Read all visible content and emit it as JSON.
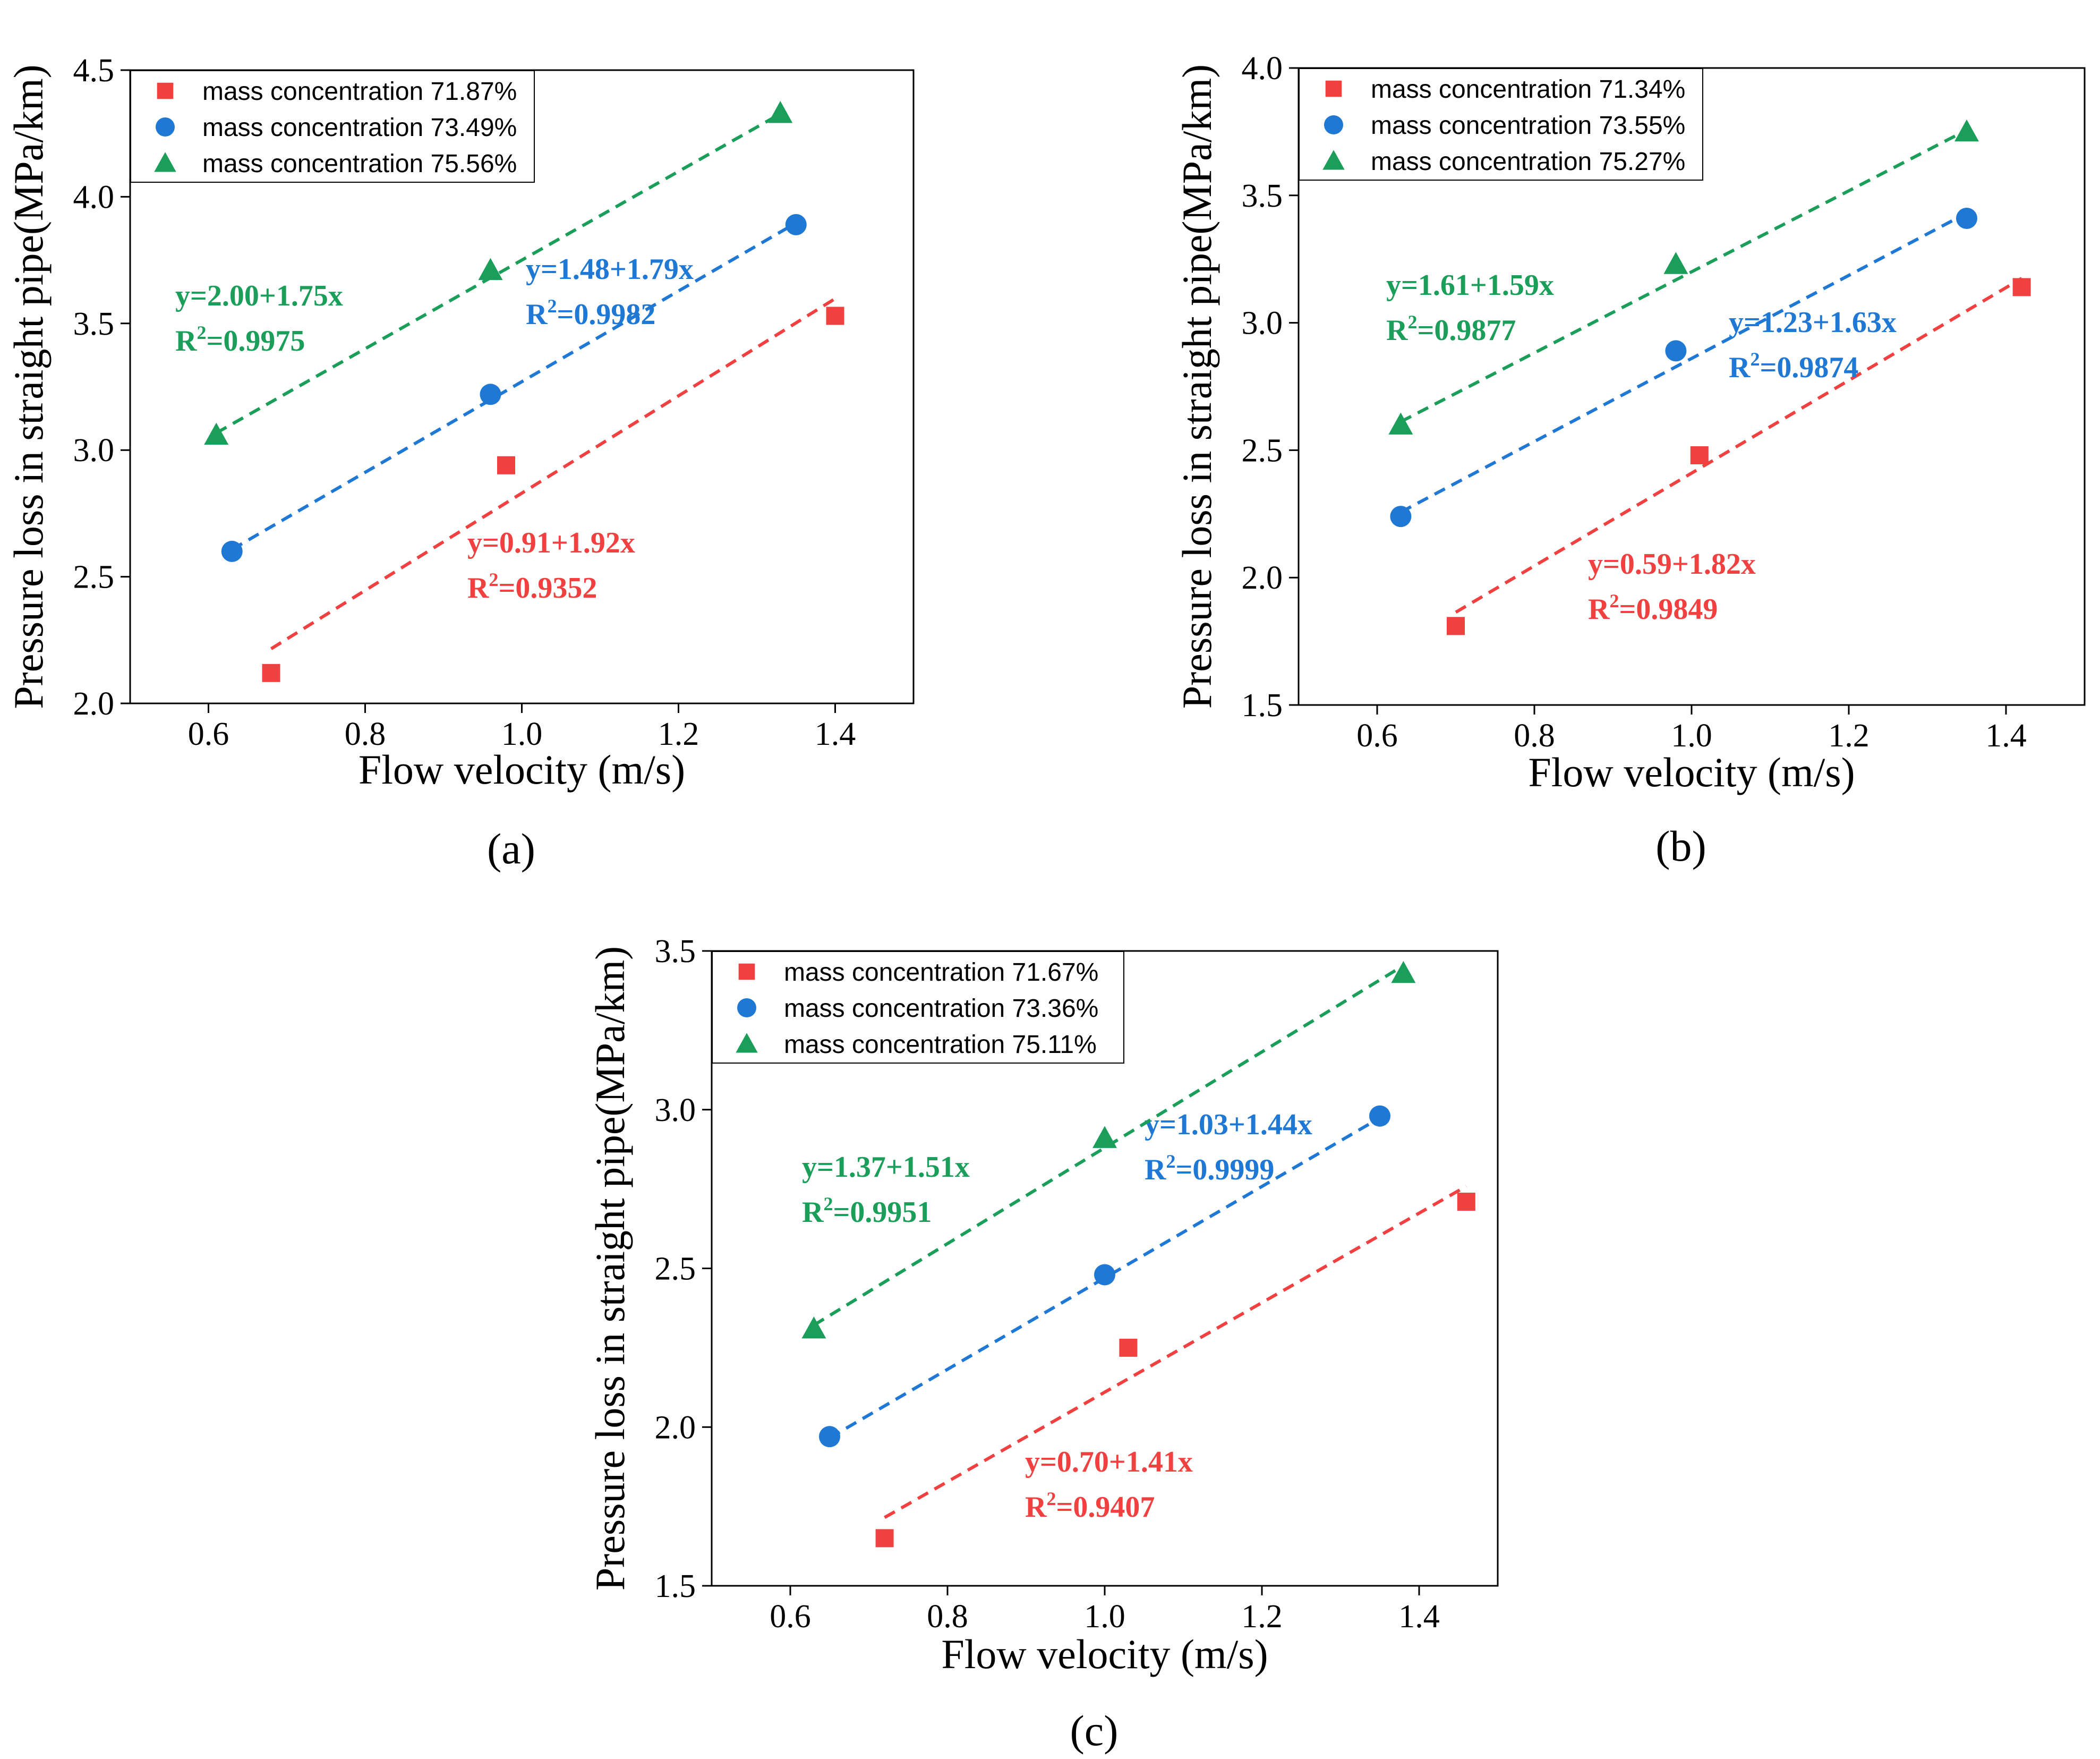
{
  "chart_data": [
    {
      "type": "scatter",
      "panel_label": "(a)",
      "xlabel": "Flow velocity (m/s)",
      "ylabel": "Pressure loss in straight pipe(MPa/km)",
      "xlim": [
        0.5,
        1.5
      ],
      "ylim": [
        2.0,
        4.5
      ],
      "xticks": [
        "0.6",
        "0.8",
        "1.0",
        "1.2",
        "1.4"
      ],
      "yticks": [
        "2.0",
        "2.5",
        "3.0",
        "3.5",
        "4.0",
        "4.5"
      ],
      "grid": false,
      "legend_position": "top-left",
      "series": [
        {
          "name": "mass concentration 71.87%",
          "marker": "square",
          "color": "#f04040",
          "x": [
            0.68,
            0.98,
            1.4
          ],
          "y": [
            2.12,
            2.94,
            3.53
          ],
          "fit_x": [
            0.68,
            1.4
          ],
          "equation": "y=0.91+1.92x",
          "r_label": "R",
          "r_sup": "2",
          "r_value": "=0.9352"
        },
        {
          "name": "mass concentration 73.49%",
          "marker": "circle",
          "color": "#1f78d4",
          "x": [
            0.63,
            0.96,
            1.35
          ],
          "y": [
            2.6,
            3.22,
            3.89
          ],
          "fit_x": [
            0.63,
            1.35
          ],
          "equation": "y=1.48+1.79x",
          "r_label": "R",
          "r_sup": "2",
          "r_value": "=0.9982"
        },
        {
          "name": "mass concentration 75.56%",
          "marker": "triangle",
          "color": "#1a9e5a",
          "x": [
            0.61,
            0.96,
            1.33
          ],
          "y": [
            3.06,
            3.71,
            4.33
          ],
          "fit_x": [
            0.61,
            1.33
          ],
          "equation": "y=2.00+1.75x",
          "r_label": "R",
          "r_sup": "2",
          "r_value": "=0.9975"
        }
      ]
    },
    {
      "type": "scatter",
      "panel_label": "(b)",
      "xlabel": "Flow velocity (m/s)",
      "ylabel": "Pressure loss in straight pipe(MPa/km)",
      "xlim": [
        0.5,
        1.5
      ],
      "ylim": [
        1.5,
        4.0
      ],
      "xticks": [
        "0.6",
        "0.8",
        "1.0",
        "1.2",
        "1.4"
      ],
      "yticks": [
        "1.5",
        "2.0",
        "2.5",
        "3.0",
        "3.5",
        "4.0"
      ],
      "grid": false,
      "legend_position": "top-left",
      "series": [
        {
          "name": "mass concentration 71.34%",
          "marker": "square",
          "color": "#f04040",
          "x": [
            0.7,
            1.01,
            1.42
          ],
          "y": [
            1.81,
            2.48,
            3.14
          ],
          "fit_x": [
            0.7,
            1.42
          ],
          "equation": "y=0.59+1.82x",
          "r_label": "R",
          "r_sup": "2",
          "r_value": "=0.9849"
        },
        {
          "name": "mass concentration 73.55%",
          "marker": "circle",
          "color": "#1f78d4",
          "x": [
            0.63,
            0.98,
            1.35
          ],
          "y": [
            2.24,
            2.89,
            3.41
          ],
          "fit_x": [
            0.63,
            1.35
          ],
          "equation": "y=1.23+1.63x",
          "r_label": "R",
          "r_sup": "2",
          "r_value": "=0.9874"
        },
        {
          "name": "mass concentration 75.27%",
          "marker": "triangle",
          "color": "#1a9e5a",
          "x": [
            0.63,
            0.98,
            1.35
          ],
          "y": [
            2.6,
            3.23,
            3.75
          ],
          "fit_x": [
            0.63,
            1.35
          ],
          "equation": "y=1.61+1.59x",
          "r_label": "R",
          "r_sup": "2",
          "r_value": "=0.9877"
        }
      ]
    },
    {
      "type": "scatter",
      "panel_label": "(c)",
      "xlabel": "Flow velocity (m/s)",
      "ylabel": "Pressure loss in straight pipe(MPa/km)",
      "xlim": [
        0.5,
        1.5
      ],
      "ylim": [
        1.5,
        3.5
      ],
      "xticks": [
        "0.6",
        "0.8",
        "1.0",
        "1.2",
        "1.4"
      ],
      "yticks": [
        "1.5",
        "2.0",
        "2.5",
        "3.0",
        "3.5"
      ],
      "grid": false,
      "legend_position": "top-left",
      "series": [
        {
          "name": "mass concentration 71.67%",
          "marker": "square",
          "color": "#f04040",
          "x": [
            0.72,
            1.03,
            1.46
          ],
          "y": [
            1.65,
            2.25,
            2.71
          ],
          "fit_x": [
            0.72,
            1.46
          ],
          "equation": "y=0.70+1.41x",
          "r_label": "R",
          "r_sup": "2",
          "r_value": "=0.9407"
        },
        {
          "name": "mass concentration 73.36%",
          "marker": "circle",
          "color": "#1f78d4",
          "x": [
            0.65,
            1.0,
            1.35
          ],
          "y": [
            1.97,
            2.48,
            2.98
          ],
          "fit_x": [
            0.65,
            1.35
          ],
          "equation": "y=1.03+1.44x",
          "r_label": "R",
          "r_sup": "2",
          "r_value": "=0.9999"
        },
        {
          "name": "mass concentration 75.11%",
          "marker": "triangle",
          "color": "#1a9e5a",
          "x": [
            0.63,
            1.0,
            1.38
          ],
          "y": [
            2.31,
            2.91,
            3.43
          ],
          "fit_x": [
            0.63,
            1.38
          ],
          "equation": "y=1.37+1.51x",
          "r_label": "R",
          "r_sup": "2",
          "r_value": "=0.9951"
        }
      ]
    }
  ]
}
